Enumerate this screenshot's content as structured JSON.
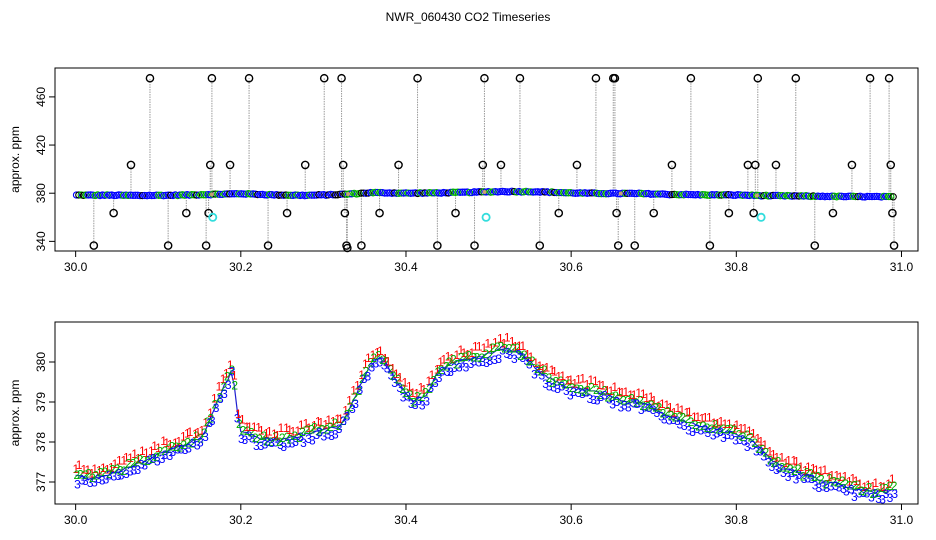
{
  "page": {
    "title": "NWR_060430  CO2 Timeseries"
  },
  "colors": {
    "frame": "#000000",
    "drop_line": "#9a9a9a",
    "raw_outline": "#000000",
    "series_blue": "#0000ff",
    "series_green": "#00b000",
    "series_red": "#ff0000",
    "flag_cyan": "#33dddd",
    "gap_dot": "#c8a070",
    "curve_line": "#2020d0"
  },
  "chart_data": [
    {
      "type": "scatter",
      "title": "NWR_060430  CO2 Timeseries",
      "ylabel": "approx. ppm",
      "xlabel": "",
      "xlim": [
        29.975,
        31.02
      ],
      "ylim": [
        332,
        484
      ],
      "x_ticks": [
        30.0,
        30.2,
        30.4,
        30.6,
        30.8,
        31.0
      ],
      "x_tick_labels": [
        "30.0",
        "30.2",
        "30.4",
        "30.6",
        "30.8",
        "31.0"
      ],
      "y_ticks": [
        340,
        380,
        420,
        460
      ],
      "y_tick_labels": [
        "340",
        "380",
        "420",
        "460"
      ],
      "grid": false,
      "baseline": [
        {
          "x": 30.0,
          "y": 378.4
        },
        {
          "x": 30.04,
          "y": 378.3
        },
        {
          "x": 30.08,
          "y": 378.1
        },
        {
          "x": 30.12,
          "y": 378.3
        },
        {
          "x": 30.16,
          "y": 378.9
        },
        {
          "x": 30.2,
          "y": 379.6
        },
        {
          "x": 30.24,
          "y": 378.6
        },
        {
          "x": 30.28,
          "y": 378.2
        },
        {
          "x": 30.32,
          "y": 378.9
        },
        {
          "x": 30.36,
          "y": 380.5
        },
        {
          "x": 30.4,
          "y": 380.0
        },
        {
          "x": 30.44,
          "y": 380.3
        },
        {
          "x": 30.48,
          "y": 380.8
        },
        {
          "x": 30.52,
          "y": 381.4
        },
        {
          "x": 30.56,
          "y": 381.2
        },
        {
          "x": 30.6,
          "y": 380.2
        },
        {
          "x": 30.64,
          "y": 379.8
        },
        {
          "x": 30.68,
          "y": 379.7
        },
        {
          "x": 30.72,
          "y": 379.0
        },
        {
          "x": 30.76,
          "y": 378.6
        },
        {
          "x": 30.8,
          "y": 378.5
        },
        {
          "x": 30.84,
          "y": 377.9
        },
        {
          "x": 30.88,
          "y": 377.6
        },
        {
          "x": 30.92,
          "y": 377.3
        },
        {
          "x": 30.96,
          "y": 377.1
        },
        {
          "x": 30.99,
          "y": 377.0
        }
      ],
      "outliers": [
        {
          "x": 30.022,
          "y": 336.5
        },
        {
          "x": 30.046,
          "y": 363.5
        },
        {
          "x": 30.067,
          "y": 403.5
        },
        {
          "x": 30.09,
          "y": 475.5
        },
        {
          "x": 30.112,
          "y": 336.5
        },
        {
          "x": 30.134,
          "y": 363.5
        },
        {
          "x": 30.158,
          "y": 336.5
        },
        {
          "x": 30.161,
          "y": 363.5
        },
        {
          "x": 30.163,
          "y": 403.5
        },
        {
          "x": 30.165,
          "y": 475.5
        },
        {
          "x": 30.187,
          "y": 403.5
        },
        {
          "x": 30.21,
          "y": 475.5
        },
        {
          "x": 30.233,
          "y": 336.5
        },
        {
          "x": 30.256,
          "y": 363.5
        },
        {
          "x": 30.278,
          "y": 403.5
        },
        {
          "x": 30.301,
          "y": 475.5
        },
        {
          "x": 30.322,
          "y": 475.5
        },
        {
          "x": 30.324,
          "y": 403.5
        },
        {
          "x": 30.326,
          "y": 363.5
        },
        {
          "x": 30.328,
          "y": 336.5
        },
        {
          "x": 30.329,
          "y": 334.5
        },
        {
          "x": 30.346,
          "y": 336.5
        },
        {
          "x": 30.368,
          "y": 363.5
        },
        {
          "x": 30.391,
          "y": 403.5
        },
        {
          "x": 30.414,
          "y": 475.5
        },
        {
          "x": 30.438,
          "y": 336.5
        },
        {
          "x": 30.46,
          "y": 363.5
        },
        {
          "x": 30.483,
          "y": 336.5
        },
        {
          "x": 30.493,
          "y": 403.5
        },
        {
          "x": 30.495,
          "y": 475.5
        },
        {
          "x": 30.515,
          "y": 403.5
        },
        {
          "x": 30.538,
          "y": 475.5
        },
        {
          "x": 30.562,
          "y": 336.5
        },
        {
          "x": 30.585,
          "y": 363.5
        },
        {
          "x": 30.607,
          "y": 403.5
        },
        {
          "x": 30.63,
          "y": 475.5
        },
        {
          "x": 30.651,
          "y": 475.5
        },
        {
          "x": 30.653,
          "y": 475.5
        },
        {
          "x": 30.655,
          "y": 363.5
        },
        {
          "x": 30.657,
          "y": 336.5
        },
        {
          "x": 30.677,
          "y": 336.5
        },
        {
          "x": 30.7,
          "y": 363.5
        },
        {
          "x": 30.722,
          "y": 403.5
        },
        {
          "x": 30.745,
          "y": 475.5
        },
        {
          "x": 30.768,
          "y": 336.5
        },
        {
          "x": 30.791,
          "y": 363.5
        },
        {
          "x": 30.814,
          "y": 403.5
        },
        {
          "x": 30.821,
          "y": 363.5
        },
        {
          "x": 30.823,
          "y": 403.5
        },
        {
          "x": 30.826,
          "y": 475.5
        },
        {
          "x": 30.848,
          "y": 403.5
        },
        {
          "x": 30.872,
          "y": 475.5
        },
        {
          "x": 30.895,
          "y": 336.5
        },
        {
          "x": 30.917,
          "y": 363.5
        },
        {
          "x": 30.94,
          "y": 403.5
        },
        {
          "x": 30.962,
          "y": 475.5
        },
        {
          "x": 30.985,
          "y": 475.5
        },
        {
          "x": 30.987,
          "y": 403.5
        },
        {
          "x": 30.989,
          "y": 363.5
        },
        {
          "x": 30.991,
          "y": 336.5
        }
      ],
      "flagged": [
        {
          "x": 30.166,
          "y": 360.0
        },
        {
          "x": 30.497,
          "y": 360.0
        },
        {
          "x": 30.83,
          "y": 360.0
        }
      ]
    },
    {
      "type": "line",
      "title": "",
      "ylabel": "approx. ppm",
      "xlabel": "",
      "xlim": [
        29.975,
        31.02
      ],
      "ylim": [
        376.45,
        381.0
      ],
      "x_ticks": [
        30.0,
        30.2,
        30.4,
        30.6,
        30.8,
        31.0
      ],
      "x_tick_labels": [
        "30.0",
        "30.2",
        "30.4",
        "30.6",
        "30.8",
        "31.0"
      ],
      "y_ticks": [
        377,
        378,
        379,
        380
      ],
      "y_tick_labels": [
        "377",
        "378",
        "379",
        "380"
      ],
      "grid": false,
      "series": [
        {
          "symbol": "1"
        },
        {
          "symbol": "2"
        },
        {
          "symbol": "3"
        }
      ],
      "trend": [
        {
          "x": 30.0,
          "y": 377.15
        },
        {
          "x": 30.02,
          "y": 377.1
        },
        {
          "x": 30.04,
          "y": 377.2
        },
        {
          "x": 30.06,
          "y": 377.35
        },
        {
          "x": 30.08,
          "y": 377.5
        },
        {
          "x": 30.1,
          "y": 377.7
        },
        {
          "x": 30.12,
          "y": 377.85
        },
        {
          "x": 30.14,
          "y": 378.0
        },
        {
          "x": 30.155,
          "y": 378.15
        },
        {
          "x": 30.165,
          "y": 378.7
        },
        {
          "x": 30.175,
          "y": 379.2
        },
        {
          "x": 30.185,
          "y": 379.6
        },
        {
          "x": 30.19,
          "y": 379.9
        },
        {
          "x": 30.195,
          "y": 378.8
        },
        {
          "x": 30.2,
          "y": 378.3
        },
        {
          "x": 30.22,
          "y": 378.1
        },
        {
          "x": 30.24,
          "y": 378.05
        },
        {
          "x": 30.26,
          "y": 378.1
        },
        {
          "x": 30.28,
          "y": 378.2
        },
        {
          "x": 30.3,
          "y": 378.3
        },
        {
          "x": 30.32,
          "y": 378.4
        },
        {
          "x": 30.34,
          "y": 379.2
        },
        {
          "x": 30.355,
          "y": 379.9
        },
        {
          "x": 30.37,
          "y": 380.15
        },
        {
          "x": 30.38,
          "y": 379.8
        },
        {
          "x": 30.395,
          "y": 379.35
        },
        {
          "x": 30.41,
          "y": 379.0
        },
        {
          "x": 30.425,
          "y": 379.2
        },
        {
          "x": 30.44,
          "y": 379.8
        },
        {
          "x": 30.46,
          "y": 380.0
        },
        {
          "x": 30.48,
          "y": 380.1
        },
        {
          "x": 30.5,
          "y": 380.2
        },
        {
          "x": 30.52,
          "y": 380.35
        },
        {
          "x": 30.54,
          "y": 380.2
        },
        {
          "x": 30.56,
          "y": 379.8
        },
        {
          "x": 30.58,
          "y": 379.5
        },
        {
          "x": 30.6,
          "y": 379.35
        },
        {
          "x": 30.62,
          "y": 379.3
        },
        {
          "x": 30.64,
          "y": 379.2
        },
        {
          "x": 30.66,
          "y": 379.05
        },
        {
          "x": 30.68,
          "y": 379.0
        },
        {
          "x": 30.7,
          "y": 378.85
        },
        {
          "x": 30.72,
          "y": 378.65
        },
        {
          "x": 30.74,
          "y": 378.5
        },
        {
          "x": 30.76,
          "y": 378.4
        },
        {
          "x": 30.78,
          "y": 378.3
        },
        {
          "x": 30.8,
          "y": 378.2
        },
        {
          "x": 30.82,
          "y": 378.0
        },
        {
          "x": 30.84,
          "y": 377.6
        },
        {
          "x": 30.86,
          "y": 377.35
        },
        {
          "x": 30.88,
          "y": 377.2
        },
        {
          "x": 30.9,
          "y": 377.05
        },
        {
          "x": 30.92,
          "y": 376.95
        },
        {
          "x": 30.94,
          "y": 376.85
        },
        {
          "x": 30.96,
          "y": 376.75
        },
        {
          "x": 30.98,
          "y": 376.75
        },
        {
          "x": 30.99,
          "y": 376.8
        }
      ]
    }
  ]
}
